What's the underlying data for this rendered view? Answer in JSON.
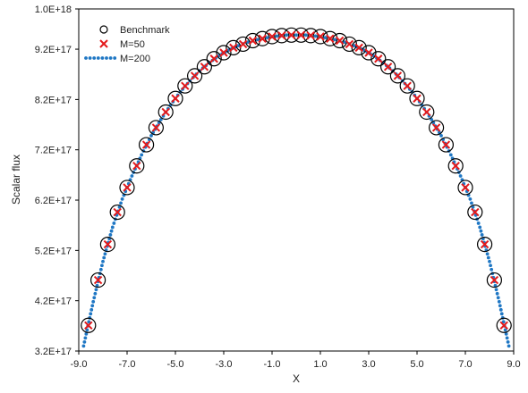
{
  "chart_data": {
    "type": "scatter",
    "xlabel": "X",
    "ylabel": "Scalar flux",
    "xlim": [
      -9.0,
      9.0
    ],
    "ylim": [
      3.2e+17,
      1e+18
    ],
    "grid": false,
    "legend_position": "top-left",
    "xticks": [
      -9.0,
      -7.0,
      -5.0,
      -3.0,
      -1.0,
      1.0,
      3.0,
      5.0,
      7.0,
      9.0
    ],
    "xtick_labels": [
      "-9.0",
      "-7.0",
      "-5.0",
      "-3.0",
      "-1.0",
      "1.0",
      "3.0",
      "5.0",
      "7.0",
      "9.0"
    ],
    "yticks": [
      3.2e+17,
      4.2e+17,
      5.2e+17,
      6.2e+17,
      7.2e+17,
      8.2e+17,
      9.2e+17,
      1e+18
    ],
    "ytick_labels": [
      "3.2E+17",
      "4.2E+17",
      "5.2E+17",
      "6.2E+17",
      "7.2E+17",
      "8.2E+17",
      "9.2E+17",
      "1.0E+18"
    ],
    "series": [
      {
        "name": "Benchmark",
        "marker": "open-circle",
        "color": "#000000",
        "x": [
          -8.6,
          -8.2,
          -7.8,
          -7.4,
          -7.0,
          -6.6,
          -6.2,
          -5.8,
          -5.4,
          -5.0,
          -4.6,
          -4.2,
          -3.8,
          -3.4,
          -3.0,
          -2.6,
          -2.2,
          -1.8,
          -1.4,
          -1.0,
          -0.6,
          -0.2,
          0.2,
          0.6,
          1.0,
          1.4,
          1.8,
          2.2,
          2.6,
          3.0,
          3.4,
          3.8,
          4.2,
          4.6,
          5.0,
          5.4,
          5.8,
          6.2,
          6.6,
          7.0,
          7.4,
          7.8,
          8.2,
          8.6
        ],
        "y": [
          3.71e+17,
          4.61e+17,
          5.32e+17,
          5.96e+17,
          6.45e+17,
          6.88e+17,
          7.3e+17,
          7.64e+17,
          7.95e+17,
          8.22e+17,
          8.47e+17,
          8.67e+17,
          8.85e+17,
          9.01e+17,
          9.13e+17,
          9.23e+17,
          9.3e+17,
          9.37e+17,
          9.41e+17,
          9.45e+17,
          9.47e+17,
          9.48e+17,
          9.48e+17,
          9.47e+17,
          9.45e+17,
          9.41e+17,
          9.37e+17,
          9.3e+17,
          9.23e+17,
          9.13e+17,
          9.01e+17,
          8.85e+17,
          8.67e+17,
          8.47e+17,
          8.22e+17,
          7.95e+17,
          7.64e+17,
          7.3e+17,
          6.88e+17,
          6.45e+17,
          5.96e+17,
          5.32e+17,
          4.61e+17,
          3.71e+17
        ]
      },
      {
        "name": "M=50",
        "marker": "x",
        "color": "#e41a1c",
        "x": [
          -8.6,
          -8.2,
          -7.8,
          -7.4,
          -7.0,
          -6.6,
          -6.2,
          -5.8,
          -5.4,
          -5.0,
          -4.6,
          -4.2,
          -3.8,
          -3.4,
          -3.0,
          -2.6,
          -2.2,
          -1.8,
          -1.4,
          -1.0,
          -0.6,
          -0.2,
          0.2,
          0.6,
          1.0,
          1.4,
          1.8,
          2.2,
          2.6,
          3.0,
          3.4,
          3.8,
          4.2,
          4.6,
          5.0,
          5.4,
          5.8,
          6.2,
          6.6,
          7.0,
          7.4,
          7.8,
          8.2,
          8.6
        ],
        "y": [
          3.71e+17,
          4.61e+17,
          5.32e+17,
          5.96e+17,
          6.45e+17,
          6.88e+17,
          7.3e+17,
          7.64e+17,
          7.95e+17,
          8.22e+17,
          8.47e+17,
          8.67e+17,
          8.85e+17,
          9.01e+17,
          9.13e+17,
          9.23e+17,
          9.3e+17,
          9.37e+17,
          9.41e+17,
          9.45e+17,
          9.47e+17,
          9.48e+17,
          9.48e+17,
          9.47e+17,
          9.45e+17,
          9.41e+17,
          9.37e+17,
          9.3e+17,
          9.23e+17,
          9.13e+17,
          9.01e+17,
          8.85e+17,
          8.67e+17,
          8.47e+17,
          8.22e+17,
          7.95e+17,
          7.64e+17,
          7.3e+17,
          6.88e+17,
          6.45e+17,
          5.96e+17,
          5.32e+17,
          4.61e+17,
          3.71e+17
        ]
      },
      {
        "name": "M=200",
        "marker": "dotted-line",
        "color": "#1f77c4",
        "x": [
          -8.8,
          -8.4,
          -8.0,
          -7.6,
          -7.2,
          -6.8,
          -6.4,
          -6.0,
          -5.6,
          -5.2,
          -4.8,
          -4.4,
          -4.0,
          -3.6,
          -3.2,
          -2.8,
          -2.4,
          -2.0,
          -1.6,
          -1.2,
          -0.8,
          -0.4,
          0.0,
          0.4,
          0.8,
          1.2,
          1.6,
          2.0,
          2.4,
          2.8,
          3.2,
          3.6,
          4.0,
          4.4,
          4.8,
          5.2,
          5.6,
          6.0,
          6.4,
          6.8,
          7.2,
          7.6,
          8.0,
          8.4,
          8.8
        ],
        "y": [
          3.3e+17,
          4.18e+17,
          4.98e+17,
          5.66e+17,
          6.22e+17,
          6.68e+17,
          7.1e+17,
          7.48e+17,
          7.8e+17,
          8.09e+17,
          8.35e+17,
          8.57e+17,
          8.77e+17,
          8.93e+17,
          9.07e+17,
          9.18e+17,
          9.27e+17,
          9.34e+17,
          9.39e+17,
          9.43e+17,
          9.46e+17,
          9.48e+17,
          9.48e+17,
          9.48e+17,
          9.46e+17,
          9.43e+17,
          9.39e+17,
          9.34e+17,
          9.27e+17,
          9.18e+17,
          9.07e+17,
          8.93e+17,
          8.77e+17,
          8.57e+17,
          8.35e+17,
          8.09e+17,
          7.8e+17,
          7.48e+17,
          7.1e+17,
          6.68e+17,
          6.22e+17,
          5.66e+17,
          4.98e+17,
          4.18e+17,
          3.3e+17
        ]
      }
    ]
  }
}
